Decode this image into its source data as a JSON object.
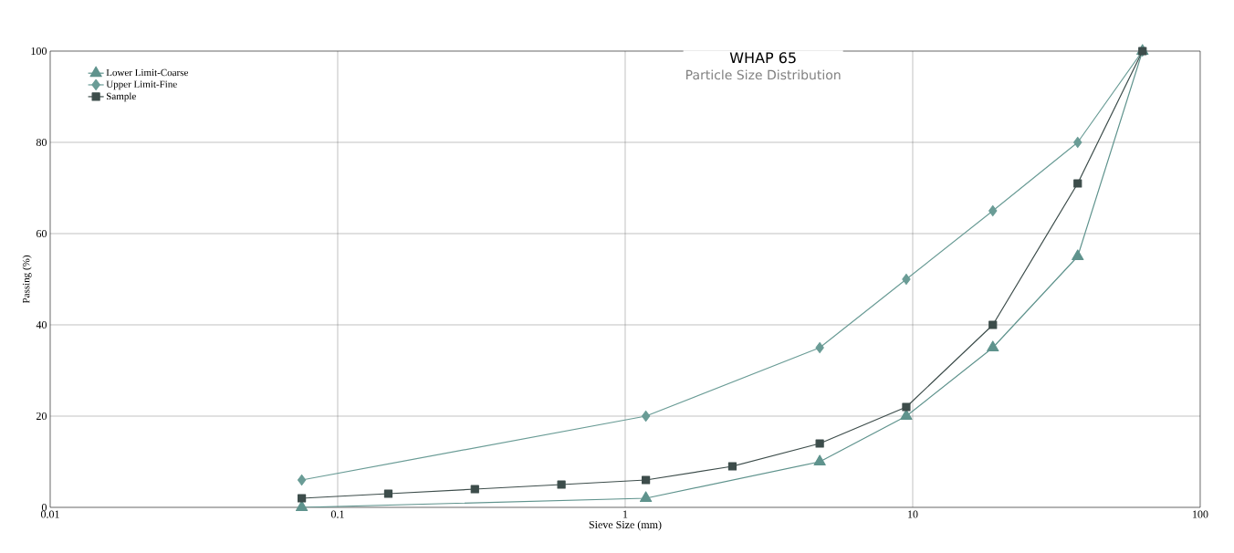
{
  "chart_data": {
    "type": "line",
    "title": "WHAP 65",
    "subtitle": "Particle Size Distribution",
    "xlabel": "Sieve Size (mm)",
    "ylabel": "Passing (%)",
    "log": "x",
    "xlim": [
      0.01,
      100
    ],
    "xticks": [
      0.01,
      0.1,
      1,
      10,
      100
    ],
    "ylim": [
      0,
      100
    ],
    "yticks": [
      0,
      20,
      40,
      60,
      80,
      100
    ],
    "grid": true,
    "legend": "top left",
    "series": [
      {
        "name": "Lower Limit-Coarse",
        "color": "#5f938d",
        "marker": "triangle",
        "x": [
          0.075,
          1.18,
          4.75,
          9.5,
          19,
          37.5,
          63
        ],
        "values": [
          0,
          2,
          10,
          20,
          35,
          55,
          100
        ]
      },
      {
        "name": "Upper Limit-Fine",
        "color": "#6a9c96",
        "marker": "diamond",
        "x": [
          0.075,
          1.18,
          4.75,
          9.5,
          19,
          37.5,
          63
        ],
        "values": [
          6,
          20,
          35,
          50,
          65,
          80,
          100
        ]
      },
      {
        "name": "Sample",
        "color": "#3d4d4b",
        "marker": "square",
        "x": [
          0.075,
          0.15,
          0.3,
          0.6,
          1.18,
          2.36,
          4.75,
          9.5,
          19,
          37.5,
          63
        ],
        "values": [
          2,
          3,
          4,
          5,
          6,
          9,
          14,
          22,
          40,
          71,
          100
        ]
      }
    ]
  }
}
